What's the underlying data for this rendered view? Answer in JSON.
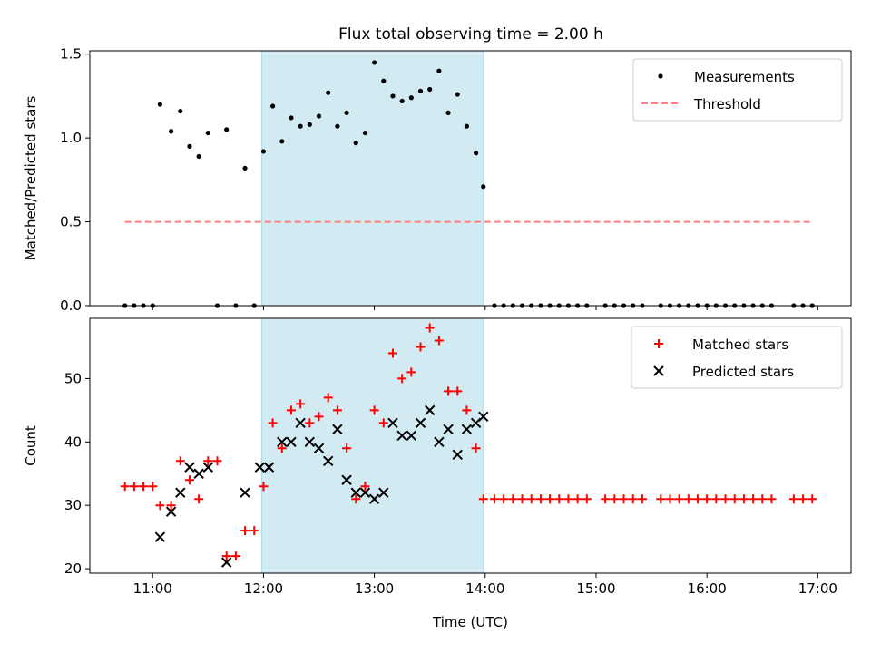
{
  "title": "Flux total observing time = 2.00 h",
  "shade_color": "#add8e6",
  "chart_data": [
    {
      "type": "scatter",
      "ylabel": "Matched/Predicted stars",
      "xlabel": "",
      "xlim": [
        "10:26",
        "17:18"
      ],
      "ylim": [
        0,
        1.52
      ],
      "x_ticks": [
        "11:00",
        "12:00",
        "13:00",
        "14:00",
        "15:00",
        "16:00",
        "17:00"
      ],
      "y_ticks": [
        "0.0",
        "0.5",
        "1.0",
        "1.5"
      ],
      "legend": {
        "placement": "upper right",
        "entries": [
          "Measurements",
          "Threshold"
        ]
      },
      "shaded_interval": [
        "11:59",
        "13:59"
      ],
      "threshold": {
        "name": "Threshold",
        "value": 0.5,
        "x_range": [
          "10:45",
          "16:57"
        ],
        "color": "#ff7f7f",
        "style": "dashed"
      },
      "series": [
        {
          "name": "Measurements",
          "color": "#000000",
          "marker": "dot",
          "points": [
            [
              "10:45",
              0
            ],
            [
              "10:50",
              0
            ],
            [
              "10:55",
              0
            ],
            [
              "11:00",
              0
            ],
            [
              "11:04",
              1.2
            ],
            [
              "11:10",
              1.04
            ],
            [
              "11:15",
              1.16
            ],
            [
              "11:20",
              0.95
            ],
            [
              "11:25",
              0.89
            ],
            [
              "11:30",
              1.03
            ],
            [
              "11:35",
              0
            ],
            [
              "11:40",
              1.05
            ],
            [
              "11:45",
              0
            ],
            [
              "11:50",
              0.82
            ],
            [
              "11:55",
              0
            ],
            [
              "12:00",
              0.92
            ],
            [
              "12:05",
              1.19
            ],
            [
              "12:10",
              0.98
            ],
            [
              "12:15",
              1.12
            ],
            [
              "12:20",
              1.07
            ],
            [
              "12:25",
              1.08
            ],
            [
              "12:30",
              1.13
            ],
            [
              "12:35",
              1.27
            ],
            [
              "12:40",
              1.07
            ],
            [
              "12:45",
              1.15
            ],
            [
              "12:50",
              0.97
            ],
            [
              "12:55",
              1.03
            ],
            [
              "13:00",
              1.45
            ],
            [
              "13:05",
              1.34
            ],
            [
              "13:10",
              1.25
            ],
            [
              "13:15",
              1.22
            ],
            [
              "13:20",
              1.24
            ],
            [
              "13:25",
              1.28
            ],
            [
              "13:30",
              1.29
            ],
            [
              "13:35",
              1.4
            ],
            [
              "13:40",
              1.15
            ],
            [
              "13:45",
              1.26
            ],
            [
              "13:50",
              1.07
            ],
            [
              "13:55",
              0.91
            ],
            [
              "13:59",
              0.71
            ],
            [
              "14:05",
              0
            ],
            [
              "14:10",
              0
            ],
            [
              "14:15",
              0
            ],
            [
              "14:20",
              0
            ],
            [
              "14:25",
              0
            ],
            [
              "14:30",
              0
            ],
            [
              "14:35",
              0
            ],
            [
              "14:40",
              0
            ],
            [
              "14:45",
              0
            ],
            [
              "14:50",
              0
            ],
            [
              "14:55",
              0
            ],
            [
              "15:05",
              0
            ],
            [
              "15:10",
              0
            ],
            [
              "15:15",
              0
            ],
            [
              "15:20",
              0
            ],
            [
              "15:25",
              0
            ],
            [
              "15:35",
              0
            ],
            [
              "15:40",
              0
            ],
            [
              "15:45",
              0
            ],
            [
              "15:50",
              0
            ],
            [
              "15:55",
              0
            ],
            [
              "16:00",
              0
            ],
            [
              "16:05",
              0
            ],
            [
              "16:10",
              0
            ],
            [
              "16:15",
              0
            ],
            [
              "16:20",
              0
            ],
            [
              "16:25",
              0
            ],
            [
              "16:30",
              0
            ],
            [
              "16:35",
              0
            ],
            [
              "16:47",
              0
            ],
            [
              "16:52",
              0
            ],
            [
              "16:57",
              0
            ]
          ]
        }
      ]
    },
    {
      "type": "scatter",
      "ylabel": "Count",
      "xlabel": "Time (UTC)",
      "xlim": [
        "10:26",
        "17:18"
      ],
      "ylim": [
        19.3,
        59.5
      ],
      "x_ticks": [
        "11:00",
        "12:00",
        "13:00",
        "14:00",
        "15:00",
        "16:00",
        "17:00"
      ],
      "y_ticks": [
        "20",
        "30",
        "40",
        "50"
      ],
      "legend": {
        "placement": "upper right",
        "entries": [
          "Matched stars",
          "Predicted stars"
        ]
      },
      "shaded_interval": [
        "11:59",
        "13:59"
      ],
      "series": [
        {
          "name": "Matched stars",
          "color": "#ff0000",
          "marker": "plus",
          "points": [
            [
              "10:45",
              33
            ],
            [
              "10:50",
              33
            ],
            [
              "10:55",
              33
            ],
            [
              "11:00",
              33
            ],
            [
              "11:04",
              30
            ],
            [
              "11:10",
              30
            ],
            [
              "11:15",
              37
            ],
            [
              "11:20",
              34
            ],
            [
              "11:25",
              31
            ],
            [
              "11:30",
              37
            ],
            [
              "11:35",
              37
            ],
            [
              "11:40",
              22
            ],
            [
              "11:45",
              22
            ],
            [
              "11:50",
              26
            ],
            [
              "11:55",
              26
            ],
            [
              "12:00",
              33
            ],
            [
              "12:05",
              43
            ],
            [
              "12:10",
              39
            ],
            [
              "12:15",
              45
            ],
            [
              "12:20",
              46
            ],
            [
              "12:25",
              43
            ],
            [
              "12:30",
              44
            ],
            [
              "12:35",
              47
            ],
            [
              "12:40",
              45
            ],
            [
              "12:45",
              39
            ],
            [
              "12:50",
              31
            ],
            [
              "12:55",
              33
            ],
            [
              "13:00",
              45
            ],
            [
              "13:05",
              43
            ],
            [
              "13:10",
              54
            ],
            [
              "13:15",
              50
            ],
            [
              "13:20",
              51
            ],
            [
              "13:25",
              55
            ],
            [
              "13:30",
              58
            ],
            [
              "13:35",
              56
            ],
            [
              "13:40",
              48
            ],
            [
              "13:45",
              48
            ],
            [
              "13:50",
              45
            ],
            [
              "13:55",
              39
            ],
            [
              "13:59",
              31
            ],
            [
              "14:05",
              31
            ],
            [
              "14:10",
              31
            ],
            [
              "14:15",
              31
            ],
            [
              "14:20",
              31
            ],
            [
              "14:25",
              31
            ],
            [
              "14:30",
              31
            ],
            [
              "14:35",
              31
            ],
            [
              "14:40",
              31
            ],
            [
              "14:45",
              31
            ],
            [
              "14:50",
              31
            ],
            [
              "14:55",
              31
            ],
            [
              "15:05",
              31
            ],
            [
              "15:10",
              31
            ],
            [
              "15:15",
              31
            ],
            [
              "15:20",
              31
            ],
            [
              "15:25",
              31
            ],
            [
              "15:35",
              31
            ],
            [
              "15:40",
              31
            ],
            [
              "15:45",
              31
            ],
            [
              "15:50",
              31
            ],
            [
              "15:55",
              31
            ],
            [
              "16:00",
              31
            ],
            [
              "16:05",
              31
            ],
            [
              "16:10",
              31
            ],
            [
              "16:15",
              31
            ],
            [
              "16:20",
              31
            ],
            [
              "16:25",
              31
            ],
            [
              "16:30",
              31
            ],
            [
              "16:35",
              31
            ],
            [
              "16:47",
              31
            ],
            [
              "16:52",
              31
            ],
            [
              "16:57",
              31
            ]
          ]
        },
        {
          "name": "Predicted stars",
          "color": "#000000",
          "marker": "x",
          "points": [
            [
              "11:04",
              25
            ],
            [
              "11:10",
              29
            ],
            [
              "11:15",
              32
            ],
            [
              "11:20",
              36
            ],
            [
              "11:25",
              35
            ],
            [
              "11:30",
              36
            ],
            [
              "11:40",
              21
            ],
            [
              "11:50",
              32
            ],
            [
              "11:58",
              36
            ],
            [
              "12:03",
              36
            ],
            [
              "12:10",
              40
            ],
            [
              "12:15",
              40
            ],
            [
              "12:20",
              43
            ],
            [
              "12:25",
              40
            ],
            [
              "12:30",
              39
            ],
            [
              "12:35",
              37
            ],
            [
              "12:40",
              42
            ],
            [
              "12:45",
              34
            ],
            [
              "12:50",
              32
            ],
            [
              "12:55",
              32
            ],
            [
              "13:00",
              31
            ],
            [
              "13:05",
              32
            ],
            [
              "13:10",
              43
            ],
            [
              "13:15",
              41
            ],
            [
              "13:20",
              41
            ],
            [
              "13:25",
              43
            ],
            [
              "13:30",
              45
            ],
            [
              "13:35",
              40
            ],
            [
              "13:40",
              42
            ],
            [
              "13:45",
              38
            ],
            [
              "13:50",
              42
            ],
            [
              "13:55",
              43
            ],
            [
              "13:59",
              44
            ]
          ]
        }
      ]
    }
  ]
}
